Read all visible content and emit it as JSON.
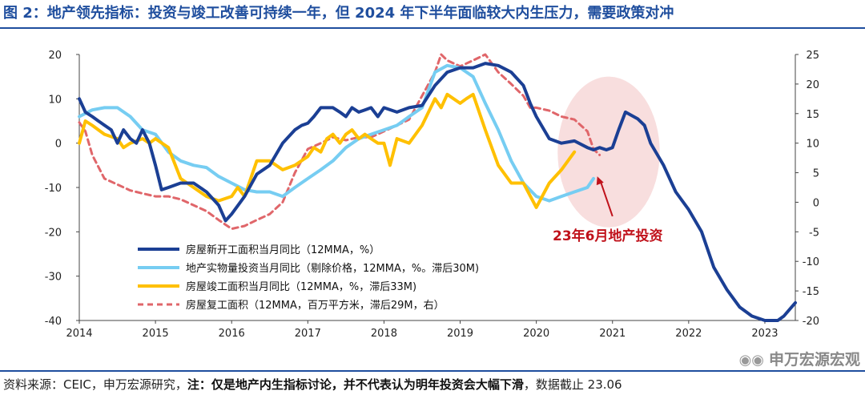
{
  "title": "图 2：地产领先指标：投资与竣工改善可持续一年，但 2024 年下半年面临较大内生压力，需要政策对冲",
  "footer": {
    "source": "资料来源：CEIC，申万宏源研究，",
    "note_label": "注：",
    "note_text": "仅是地产内生指标讨论，并不代表认为明年投资会大幅下滑",
    "cutoff": "，数据截止 23.06"
  },
  "watermark": {
    "text": "申万宏源宏观",
    "icon": "wechat-icon"
  },
  "chart_data": {
    "type": "line",
    "x_ticks": [
      "2014",
      "2015",
      "2016",
      "2017",
      "2018",
      "2019",
      "2020",
      "2021",
      "2022",
      "2023"
    ],
    "left_axis": {
      "ticks": [
        "20",
        "10",
        "0",
        "-10",
        "-20",
        "-30",
        "-40"
      ],
      "ylim": [
        -40,
        20
      ]
    },
    "right_axis": {
      "ticks": [
        "25",
        "20",
        "15",
        "10",
        "5",
        "0",
        "-5",
        "-10",
        "-15",
        "-20"
      ],
      "ylim": [
        -20,
        25
      ]
    },
    "xlim": [
      2014,
      2023.4
    ],
    "grid": false,
    "legend_position": "lower-left",
    "annotation": {
      "text": "23年6月地产投资",
      "highlight_center": [
        2020.95,
        -2
      ],
      "highlight_radii": [
        0.67,
        17
      ],
      "arrow_from": [
        2021.0,
        -16.5
      ],
      "arrow_to": [
        2020.8,
        -7.5
      ]
    },
    "series": [
      {
        "name": "房屋新开工面积当月同比（12MMA，%）",
        "axis": "left",
        "color": "#1b3f94",
        "width": 4,
        "dash": "",
        "points": [
          [
            2014.0,
            10
          ],
          [
            2014.08,
            7
          ],
          [
            2014.17,
            6
          ],
          [
            2014.25,
            5
          ],
          [
            2014.42,
            3
          ],
          [
            2014.5,
            0
          ],
          [
            2014.58,
            3
          ],
          [
            2014.67,
            1
          ],
          [
            2014.75,
            0
          ],
          [
            2014.83,
            3
          ],
          [
            2014.92,
            0
          ],
          [
            2015.0,
            -5
          ],
          [
            2015.08,
            -10.5
          ],
          [
            2015.17,
            -10
          ],
          [
            2015.33,
            -9
          ],
          [
            2015.5,
            -9
          ],
          [
            2015.67,
            -11
          ],
          [
            2015.83,
            -14
          ],
          [
            2015.92,
            -17.5
          ],
          [
            2016.0,
            -16
          ],
          [
            2016.17,
            -12
          ],
          [
            2016.33,
            -7
          ],
          [
            2016.5,
            -5
          ],
          [
            2016.67,
            0
          ],
          [
            2016.83,
            3
          ],
          [
            2016.92,
            4
          ],
          [
            2017.0,
            4.5
          ],
          [
            2017.08,
            6
          ],
          [
            2017.17,
            8
          ],
          [
            2017.33,
            8
          ],
          [
            2017.42,
            7
          ],
          [
            2017.5,
            6
          ],
          [
            2017.58,
            8
          ],
          [
            2017.67,
            7
          ],
          [
            2017.75,
            7.5
          ],
          [
            2017.83,
            8
          ],
          [
            2017.92,
            6
          ],
          [
            2018.0,
            8
          ],
          [
            2018.17,
            7
          ],
          [
            2018.33,
            8
          ],
          [
            2018.5,
            8.5
          ],
          [
            2018.67,
            13
          ],
          [
            2018.83,
            16
          ],
          [
            2019.0,
            17
          ],
          [
            2019.17,
            17
          ],
          [
            2019.33,
            18
          ],
          [
            2019.5,
            17.5
          ],
          [
            2019.67,
            16
          ],
          [
            2019.83,
            13
          ],
          [
            2019.92,
            9
          ],
          [
            2020.0,
            6
          ],
          [
            2020.17,
            1
          ],
          [
            2020.33,
            0
          ],
          [
            2020.5,
            0.5
          ],
          [
            2020.67,
            -1
          ],
          [
            2020.75,
            -1.5
          ],
          [
            2020.83,
            -1
          ],
          [
            2020.92,
            -1.5
          ],
          [
            2021.0,
            -1
          ],
          [
            2021.08,
            3
          ],
          [
            2021.17,
            7
          ],
          [
            2021.33,
            5.5
          ],
          [
            2021.42,
            4
          ],
          [
            2021.5,
            0
          ],
          [
            2021.67,
            -5
          ],
          [
            2021.83,
            -11
          ],
          [
            2022.0,
            -15
          ],
          [
            2022.17,
            -20
          ],
          [
            2022.33,
            -28
          ],
          [
            2022.5,
            -33
          ],
          [
            2022.67,
            -37
          ],
          [
            2022.83,
            -39
          ],
          [
            2023.0,
            -40
          ],
          [
            2023.17,
            -40
          ],
          [
            2023.25,
            -39
          ],
          [
            2023.4,
            -36
          ]
        ]
      },
      {
        "name": "地产实物量投资当月同比（剔除价格，12MMA，%。滞后30M)",
        "axis": "left",
        "color": "#76cdf2",
        "width": 4,
        "dash": "",
        "points": [
          [
            2014.0,
            6
          ],
          [
            2014.17,
            7.5
          ],
          [
            2014.33,
            8
          ],
          [
            2014.5,
            8
          ],
          [
            2014.67,
            6
          ],
          [
            2014.83,
            3
          ],
          [
            2015.0,
            2
          ],
          [
            2015.17,
            -2
          ],
          [
            2015.33,
            -4
          ],
          [
            2015.5,
            -5
          ],
          [
            2015.67,
            -5.5
          ],
          [
            2015.83,
            -7.5
          ],
          [
            2016.0,
            -9
          ],
          [
            2016.17,
            -10.5
          ],
          [
            2016.33,
            -11
          ],
          [
            2016.5,
            -11
          ],
          [
            2016.67,
            -12
          ],
          [
            2016.83,
            -10
          ],
          [
            2017.0,
            -8
          ],
          [
            2017.17,
            -6
          ],
          [
            2017.33,
            -4
          ],
          [
            2017.5,
            -1
          ],
          [
            2017.67,
            1
          ],
          [
            2017.83,
            2
          ],
          [
            2018.0,
            3
          ],
          [
            2018.17,
            4
          ],
          [
            2018.33,
            6
          ],
          [
            2018.5,
            8
          ],
          [
            2018.67,
            16
          ],
          [
            2018.83,
            17.5
          ],
          [
            2019.0,
            17
          ],
          [
            2019.17,
            15
          ],
          [
            2019.33,
            9
          ],
          [
            2019.5,
            3
          ],
          [
            2019.67,
            -4
          ],
          [
            2019.83,
            -9
          ],
          [
            2020.0,
            -12
          ],
          [
            2020.17,
            -13
          ],
          [
            2020.33,
            -12
          ],
          [
            2020.5,
            -11
          ],
          [
            2020.67,
            -10
          ],
          [
            2020.75,
            -8
          ]
        ]
      },
      {
        "name": "房屋竣工面积当月同比（12MMA，%，滞后33M)",
        "axis": "left",
        "color": "#ffc000",
        "width": 4,
        "dash": "",
        "points": [
          [
            2014.0,
            0
          ],
          [
            2014.08,
            5
          ],
          [
            2014.17,
            4
          ],
          [
            2014.33,
            2
          ],
          [
            2014.5,
            1
          ],
          [
            2014.58,
            -1
          ],
          [
            2014.67,
            0
          ],
          [
            2014.83,
            1
          ],
          [
            2014.92,
            0
          ],
          [
            2015.0,
            1
          ],
          [
            2015.17,
            -1
          ],
          [
            2015.33,
            -8
          ],
          [
            2015.5,
            -10
          ],
          [
            2015.67,
            -12
          ],
          [
            2015.83,
            -13
          ],
          [
            2016.0,
            -12
          ],
          [
            2016.08,
            -10
          ],
          [
            2016.17,
            -12
          ],
          [
            2016.25,
            -8
          ],
          [
            2016.33,
            -4
          ],
          [
            2016.5,
            -4
          ],
          [
            2016.67,
            -6
          ],
          [
            2016.83,
            -5
          ],
          [
            2017.0,
            -3
          ],
          [
            2017.08,
            -1
          ],
          [
            2017.17,
            -2
          ],
          [
            2017.25,
            1
          ],
          [
            2017.33,
            2
          ],
          [
            2017.42,
            0
          ],
          [
            2017.5,
            2
          ],
          [
            2017.58,
            3
          ],
          [
            2017.67,
            1
          ],
          [
            2017.75,
            2
          ],
          [
            2017.83,
            1
          ],
          [
            2017.92,
            0
          ],
          [
            2018.0,
            0
          ],
          [
            2018.08,
            -5
          ],
          [
            2018.17,
            1
          ],
          [
            2018.33,
            0
          ],
          [
            2018.5,
            4
          ],
          [
            2018.67,
            10
          ],
          [
            2018.75,
            8
          ],
          [
            2018.83,
            11
          ],
          [
            2019.0,
            9
          ],
          [
            2019.08,
            10
          ],
          [
            2019.17,
            11
          ],
          [
            2019.33,
            3
          ],
          [
            2019.5,
            -5
          ],
          [
            2019.67,
            -9
          ],
          [
            2019.83,
            -9
          ],
          [
            2020.0,
            -14.5
          ],
          [
            2020.17,
            -9
          ],
          [
            2020.33,
            -6
          ],
          [
            2020.5,
            -2
          ]
        ]
      },
      {
        "name": "房屋复工面积（12MMA，百万平方米，滞后29M，右）",
        "axis": "right",
        "color": "#e0666a",
        "width": 3,
        "dash": "7,5",
        "points": [
          [
            2014.0,
            13.5
          ],
          [
            2014.08,
            12
          ],
          [
            2014.17,
            8
          ],
          [
            2014.25,
            6
          ],
          [
            2014.33,
            4
          ],
          [
            2014.5,
            3
          ],
          [
            2014.67,
            2
          ],
          [
            2014.83,
            1.5
          ],
          [
            2015.0,
            1
          ],
          [
            2015.17,
            1
          ],
          [
            2015.33,
            0.5
          ],
          [
            2015.5,
            -0.5
          ],
          [
            2015.67,
            -1.5
          ],
          [
            2015.83,
            -3
          ],
          [
            2016.0,
            -4.5
          ],
          [
            2016.17,
            -4
          ],
          [
            2016.33,
            -3
          ],
          [
            2016.5,
            -2
          ],
          [
            2016.67,
            0
          ],
          [
            2016.83,
            5
          ],
          [
            2017.0,
            9
          ],
          [
            2017.17,
            10
          ],
          [
            2017.33,
            11
          ],
          [
            2017.5,
            10.5
          ],
          [
            2017.67,
            11
          ],
          [
            2017.83,
            11
          ],
          [
            2018.0,
            12
          ],
          [
            2018.17,
            13
          ],
          [
            2018.33,
            14
          ],
          [
            2018.5,
            18
          ],
          [
            2018.67,
            22
          ],
          [
            2018.75,
            25
          ],
          [
            2018.83,
            24
          ],
          [
            2019.0,
            23
          ],
          [
            2019.17,
            24
          ],
          [
            2019.33,
            25
          ],
          [
            2019.5,
            22
          ],
          [
            2019.67,
            20
          ],
          [
            2019.83,
            18
          ],
          [
            2019.92,
            16
          ],
          [
            2020.0,
            16
          ],
          [
            2020.17,
            15.5
          ],
          [
            2020.33,
            14.5
          ],
          [
            2020.5,
            14
          ],
          [
            2020.67,
            12
          ],
          [
            2020.75,
            9
          ],
          [
            2020.83,
            8
          ]
        ]
      }
    ]
  }
}
